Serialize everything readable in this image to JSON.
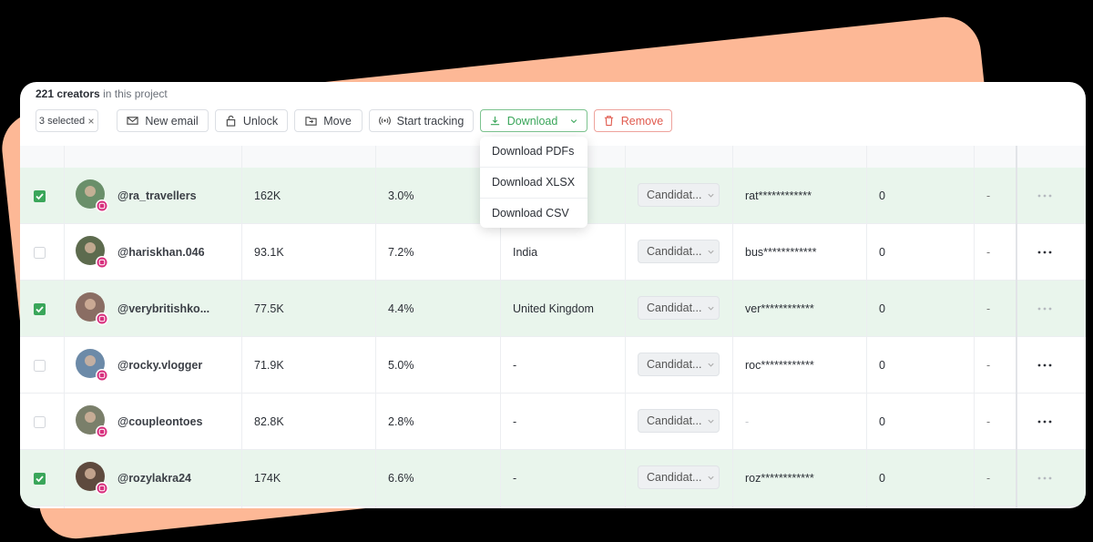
{
  "header": {
    "count": "221 creators",
    "suffix": "in this project"
  },
  "toolbar": {
    "selected": "3 selected",
    "buttons": [
      "New email",
      "Unlock",
      "Move",
      "Start tracking",
      "Download",
      "Remove"
    ]
  },
  "dropdown": {
    "items": [
      "Download PDFs",
      "Download XLSX",
      "Download CSV"
    ]
  },
  "table": {
    "rows": [
      {
        "selected": true,
        "handle": "@ra_travellers",
        "followers": "162K",
        "engagement": "3.0%",
        "country": null,
        "status": "Candidat...",
        "email": "rat************",
        "count": 0,
        "last": "-"
      },
      {
        "selected": false,
        "handle": "@hariskhan.046",
        "followers": "93.1K",
        "engagement": "7.2%",
        "country": "India",
        "status": "Candidat...",
        "email": "bus************",
        "count": 0,
        "last": "-"
      },
      {
        "selected": true,
        "handle": "@verybritishko...",
        "followers": "77.5K",
        "engagement": "4.4%",
        "country": "United Kingdom",
        "status": "Candidat...",
        "email": "ver************",
        "count": 0,
        "last": "-"
      },
      {
        "selected": false,
        "handle": "@rocky.vlogger",
        "followers": "71.9K",
        "engagement": "5.0%",
        "country": "-",
        "status": "Candidat...",
        "email": "roc************",
        "count": 0,
        "last": "-"
      },
      {
        "selected": false,
        "handle": "@coupleontoes",
        "followers": "82.8K",
        "engagement": "2.8%",
        "country": "-",
        "status": "Candidat...",
        "email": "-",
        "count": 0,
        "last": "-"
      },
      {
        "selected": true,
        "handle": "@rozylakra24",
        "followers": "174K",
        "engagement": "6.6%",
        "country": "-",
        "status": "Candidat...",
        "email": "roz************",
        "count": 0,
        "last": "-"
      }
    ]
  }
}
